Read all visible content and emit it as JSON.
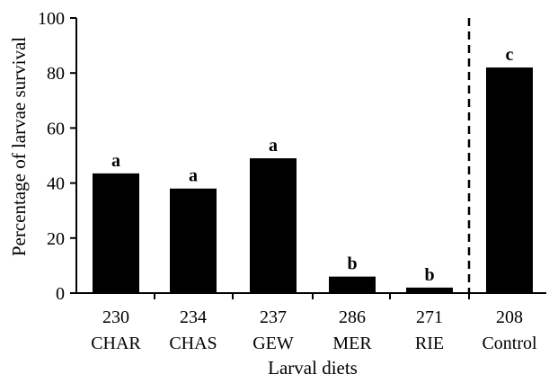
{
  "chart_data": {
    "type": "bar",
    "title": "",
    "xlabel": "Larval diets",
    "ylabel": "Percentage of larvae survival",
    "ylim": [
      0,
      100
    ],
    "yticks": [
      0,
      20,
      40,
      60,
      80,
      100
    ],
    "categories": [
      {
        "code": "230",
        "name": "CHAR"
      },
      {
        "code": "234",
        "name": "CHAS"
      },
      {
        "code": "237",
        "name": "GEW"
      },
      {
        "code": "286",
        "name": "MER"
      },
      {
        "code": "271",
        "name": "RIE"
      },
      {
        "code": "208",
        "name": "Control"
      }
    ],
    "values": [
      43.5,
      38,
      49,
      6,
      2,
      82
    ],
    "significance_letters": [
      "a",
      "a",
      "a",
      "b",
      "b",
      "c"
    ],
    "separator": "dashed vertical line between RIE and Control",
    "grid": false,
    "bar_color": "#000000",
    "legend": "none"
  }
}
